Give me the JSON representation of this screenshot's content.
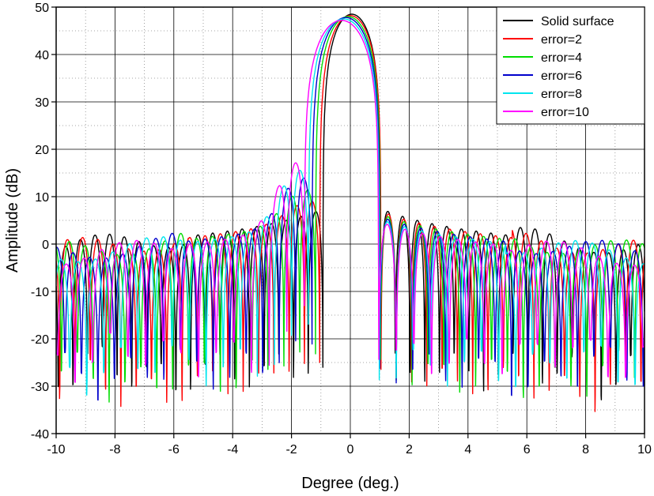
{
  "chart_data": {
    "type": "line",
    "xlabel": "Degree (deg.)",
    "ylabel": "Amplitude (dB)",
    "xlim": [
      -10,
      10
    ],
    "ylim": [
      -40,
      50
    ],
    "x_major_ticks": [
      -10,
      -8,
      -6,
      -4,
      -2,
      0,
      2,
      4,
      6,
      8,
      10
    ],
    "x_tick_labels": [
      "-10",
      "-8",
      "-6",
      "-4",
      "-2",
      "0",
      "2",
      "4",
      "6",
      "8",
      "10"
    ],
    "y_major_ticks": [
      -40,
      -30,
      -20,
      -10,
      0,
      10,
      20,
      30,
      40,
      50
    ],
    "y_tick_labels": [
      "-40",
      "-30",
      "-20",
      "-10",
      "0",
      "10",
      "20",
      "30",
      "40",
      "50"
    ],
    "grid": true,
    "minor_grid": "dotted",
    "legend_position": "top-right",
    "series": [
      {
        "name": "Solid surface",
        "color": "#000000",
        "peak_x": 0.05,
        "peak_db": 48.5,
        "lobe_spacing": 0.5,
        "first_null": 0.98,
        "skew": 0.0,
        "near_rise": 0.0,
        "null_depth": -27
      },
      {
        "name": "error=2",
        "color": "#ff0000",
        "peak_x": 0.0,
        "peak_db": 48.2,
        "lobe_spacing": 0.52,
        "first_null": 1.04,
        "skew": 0.05,
        "near_rise": 3.0,
        "null_depth": -30
      },
      {
        "name": "error=4",
        "color": "#00dd00",
        "peak_x": -0.08,
        "peak_db": 48.0,
        "lobe_spacing": 0.54,
        "first_null": 1.1,
        "skew": 0.1,
        "near_rise": 6.0,
        "null_depth": -28
      },
      {
        "name": "error=6",
        "color": "#0000cc",
        "peak_x": -0.15,
        "peak_db": 47.8,
        "lobe_spacing": 0.56,
        "first_null": 1.15,
        "skew": 0.15,
        "near_rise": 9.0,
        "null_depth": -27
      },
      {
        "name": "error=8",
        "color": "#00e5ee",
        "peak_x": -0.22,
        "peak_db": 47.5,
        "lobe_spacing": 0.58,
        "first_null": 1.2,
        "skew": 0.2,
        "near_rise": 11.0,
        "null_depth": -26
      },
      {
        "name": "error=10",
        "color": "#ff00ff",
        "peak_x": -0.3,
        "peak_db": 47.2,
        "lobe_spacing": 0.6,
        "first_null": 1.26,
        "skew": 0.25,
        "near_rise": 13.0,
        "null_depth": -24
      }
    ]
  }
}
